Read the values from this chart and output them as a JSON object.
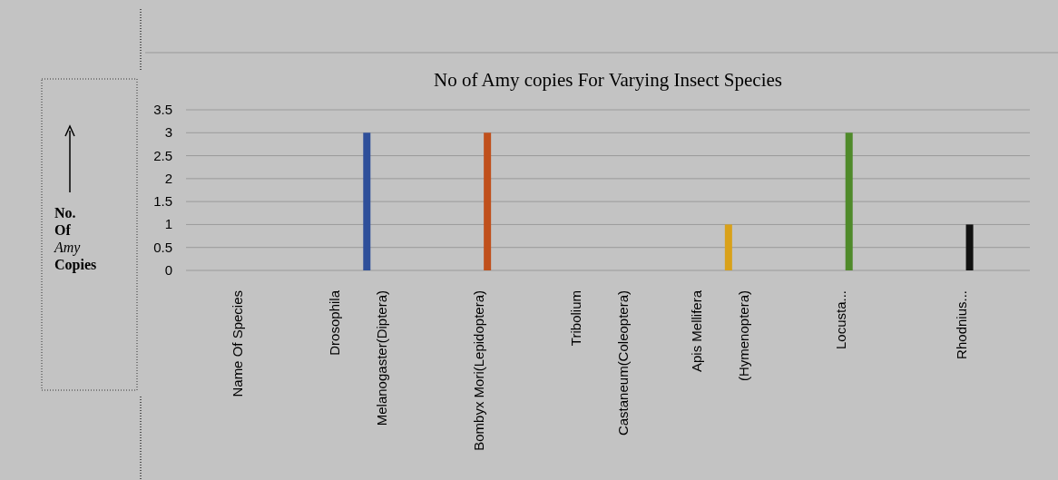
{
  "chart_data": {
    "type": "bar",
    "title": "No of Amy copies For Varying Insect Species",
    "ylabel": "No. Of Amy Copies",
    "categories": [
      "Name Of Species",
      "Drosophila\nMelanogaster(Diptera)",
      "Bombyx Mori(Lepidoptera)",
      "Tribolium\nCastaneum(Coleoptera)",
      "Apis Mellifera\n(Hymenoptera)",
      "Locusta...",
      "Rhodnius..."
    ],
    "values": [
      null,
      3,
      3,
      null,
      1,
      3,
      1
    ],
    "colors": [
      null,
      "#2e4f9a",
      "#c0501c",
      null,
      "#d9a11a",
      "#4f8a2a",
      "#111111"
    ],
    "ylim": [
      0,
      3.5
    ],
    "yticks": [
      0,
      0.5,
      1,
      1.5,
      2,
      2.5,
      3,
      3.5
    ],
    "grid": "y"
  }
}
